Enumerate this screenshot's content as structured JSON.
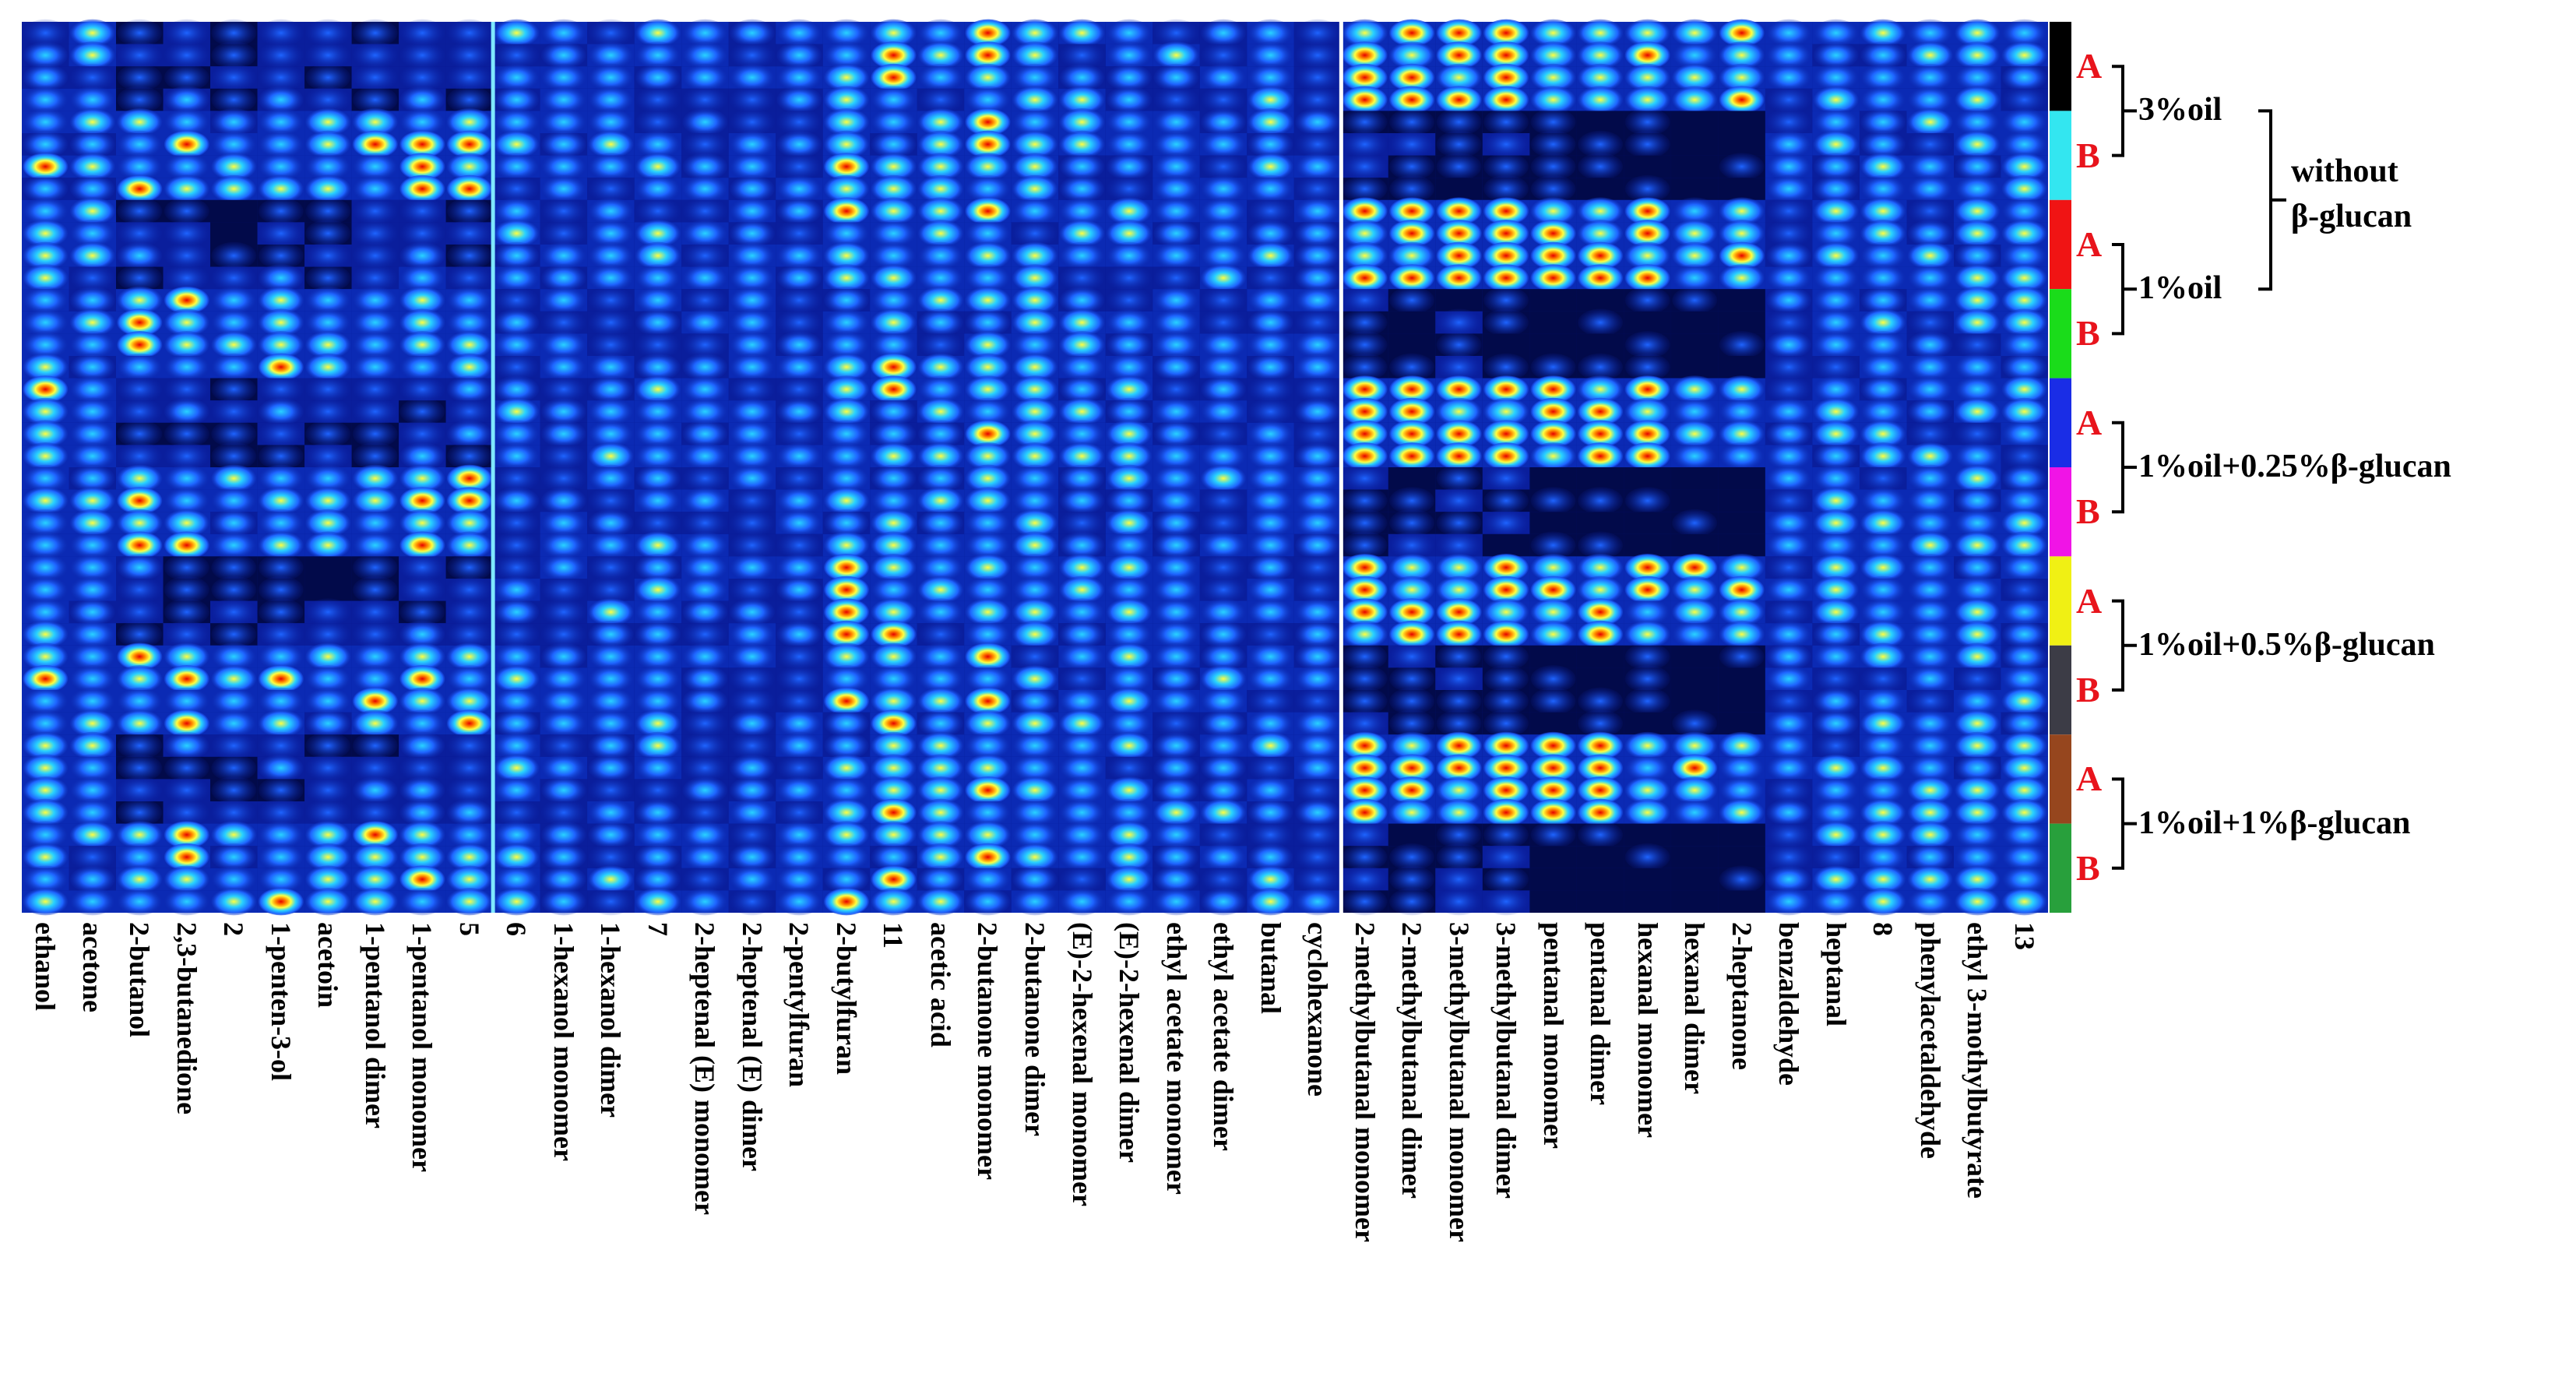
{
  "chart_data": {
    "type": "heatmap",
    "title": "",
    "columns": [
      "ethanol",
      "acetone",
      "2-butanol",
      "2,3-butanedione",
      "2",
      "1-penten-3-ol",
      "acetoin",
      "1-pentanol dimer",
      "1-pentanol monomer",
      "5",
      "6",
      "1-hexanol monomer",
      "1-hexanol dimer",
      "7",
      "2-heptenal (E) monomer",
      "2-heptenal (E) dimer",
      "2-pentylfuran",
      "2-butylfuran",
      "11",
      "acetic acid",
      "2-butanone monomer",
      "2-butanone dimer",
      "(E)-2-hexenal monomer",
      "(E)-2-hexenal dimer",
      "ethyl acetate monomer",
      "ethyl acetate dimer",
      "butanal",
      "cyclohexanone",
      "2-methylbutanal monomer",
      "2-methylbutanal dimer",
      "3-methylbutanal monomer",
      "3-methylbutanal dimer",
      "pentanal monomer",
      "pentanal dimer",
      "hexanal monomer",
      "hexanal dimer",
      "2-heptanone",
      "benzaldehyde",
      "heptanal",
      "8",
      "phenylacetaldehyde",
      "ethyl 3-mothylbutyrate",
      "13"
    ],
    "sample_groups": [
      {
        "label": "A",
        "color": "#000000",
        "oil": "3%oil",
        "treatment": "without β-glucan"
      },
      {
        "label": "B",
        "color": "#33e6f0",
        "oil": "3%oil",
        "treatment": "without β-glucan"
      },
      {
        "label": "A",
        "color": "#f01414",
        "oil": "1%oil",
        "treatment": "without β-glucan"
      },
      {
        "label": "B",
        "color": "#1adc1a",
        "oil": "1%oil",
        "treatment": "without β-glucan"
      },
      {
        "label": "A",
        "color": "#1a2de6",
        "oil": "1%oil+0.25%β-glucan",
        "treatment": ""
      },
      {
        "label": "B",
        "color": "#f014e6",
        "oil": "1%oil+0.25%β-glucan",
        "treatment": ""
      },
      {
        "label": "A",
        "color": "#f0f014",
        "oil": "1%oil+0.5%β-glucan",
        "treatment": ""
      },
      {
        "label": "B",
        "color": "#3c3c46",
        "oil": "1%oil+0.5%β-glucan",
        "treatment": ""
      },
      {
        "label": "A",
        "color": "#96461e",
        "oil": "1%oil+1%β-glucan",
        "treatment": ""
      },
      {
        "label": "B",
        "color": "#28a03c",
        "oil": "1%oil+1%β-glucan",
        "treatment": ""
      }
    ],
    "brackets": {
      "oil_groups": [
        "3%oil",
        "1%oil",
        "1%oil+0.25%β-glucan",
        "1%oil+0.5%β-glucan",
        "1%oil+1%β-glucan"
      ],
      "outer": "without\nβ-glucan"
    },
    "colormap": [
      "#000033",
      "#0000b4",
      "#1e64ff",
      "#28d2ff",
      "#ffff40",
      "#ff8c00",
      "#e60000"
    ],
    "rows_per_group": 4,
    "intensity_pattern": {
      "column_profile": [
        0.75,
        0.7,
        0.7,
        0.7,
        0.55,
        0.7,
        0.6,
        0.7,
        0.8,
        0.75,
        0.65,
        0.55,
        0.6,
        0.65,
        0.55,
        0.55,
        0.55,
        0.8,
        0.8,
        0.7,
        0.85,
        0.75,
        0.7,
        0.7,
        0.6,
        0.6,
        0.6,
        0.55,
        0.85,
        0.85,
        0.9,
        0.9,
        0.7,
        0.7,
        0.7,
        0.55,
        0.55,
        0.55,
        0.7,
        0.7,
        0.7,
        0.7,
        0.7
      ]
    }
  }
}
